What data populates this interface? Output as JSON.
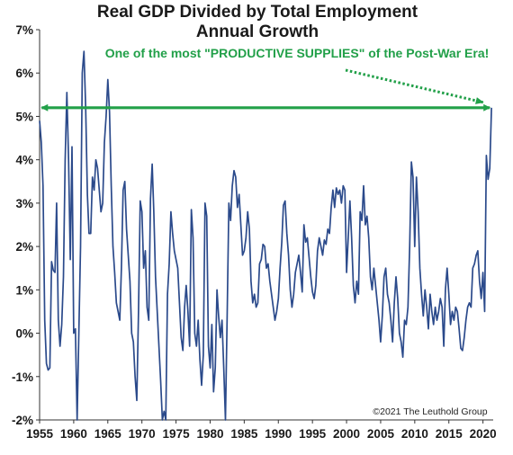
{
  "chart_data": {
    "type": "line",
    "title": "Real GDP Divided by Total Employment",
    "subtitle": "Annual Growth",
    "xlabel": "",
    "ylabel": "",
    "xlim": [
      1955,
      2021.5
    ],
    "ylim": [
      -2,
      7
    ],
    "x_ticks": [
      1955,
      1960,
      1965,
      1970,
      1975,
      1980,
      1985,
      1990,
      1995,
      2000,
      2005,
      2010,
      2015,
      2020
    ],
    "y_ticks": [
      -2,
      -1,
      0,
      1,
      2,
      3,
      4,
      5,
      6,
      7
    ],
    "y_tick_labels": [
      "-2%",
      "-1%",
      "0%",
      "1%",
      "2%",
      "3%",
      "4%",
      "5%",
      "6%",
      "7%"
    ],
    "grid": false,
    "series": [
      {
        "color": "#2b4a8b",
        "points": [
          [
            1955.0,
            4.9
          ],
          [
            1955.25,
            4.4
          ],
          [
            1955.5,
            3.4
          ],
          [
            1955.75,
            0.3
          ],
          [
            1956.0,
            -0.7
          ],
          [
            1956.25,
            -0.85
          ],
          [
            1956.5,
            -0.8
          ],
          [
            1956.75,
            1.65
          ],
          [
            1957.0,
            1.45
          ],
          [
            1957.25,
            1.4
          ],
          [
            1957.5,
            3.0
          ],
          [
            1957.75,
            0.3
          ],
          [
            1958.0,
            -0.3
          ],
          [
            1958.25,
            0.2
          ],
          [
            1958.5,
            1.3
          ],
          [
            1958.75,
            4.0
          ],
          [
            1959.0,
            5.55
          ],
          [
            1959.25,
            4.0
          ],
          [
            1959.5,
            1.7
          ],
          [
            1959.75,
            4.3
          ],
          [
            1960.0,
            0.0
          ],
          [
            1960.25,
            0.1
          ],
          [
            1960.5,
            -2.0
          ],
          [
            1960.75,
            0.0
          ],
          [
            1961.0,
            2.0
          ],
          [
            1961.25,
            6.0
          ],
          [
            1961.5,
            6.5
          ],
          [
            1961.75,
            5.2
          ],
          [
            1962.0,
            3.2
          ],
          [
            1962.25,
            2.3
          ],
          [
            1962.5,
            2.3
          ],
          [
            1962.75,
            3.6
          ],
          [
            1963.0,
            3.3
          ],
          [
            1963.25,
            4.0
          ],
          [
            1963.5,
            3.8
          ],
          [
            1963.75,
            3.3
          ],
          [
            1964.0,
            2.8
          ],
          [
            1964.25,
            3.0
          ],
          [
            1964.5,
            4.4
          ],
          [
            1964.75,
            5.0
          ],
          [
            1965.0,
            5.85
          ],
          [
            1965.25,
            5.1
          ],
          [
            1965.5,
            3.4
          ],
          [
            1965.75,
            2.0
          ],
          [
            1966.0,
            1.4
          ],
          [
            1966.25,
            0.7
          ],
          [
            1966.5,
            0.5
          ],
          [
            1966.75,
            0.3
          ],
          [
            1967.0,
            1.5
          ],
          [
            1967.25,
            3.3
          ],
          [
            1967.5,
            3.5
          ],
          [
            1967.75,
            2.4
          ],
          [
            1968.0,
            1.8
          ],
          [
            1968.25,
            1.2
          ],
          [
            1968.5,
            0.0
          ],
          [
            1968.75,
            -0.2
          ],
          [
            1969.0,
            -1.0
          ],
          [
            1969.25,
            -1.55
          ],
          [
            1969.5,
            0.5
          ],
          [
            1969.75,
            3.05
          ],
          [
            1970.0,
            2.8
          ],
          [
            1970.25,
            1.5
          ],
          [
            1970.5,
            1.9
          ],
          [
            1970.75,
            0.6
          ],
          [
            1971.0,
            0.3
          ],
          [
            1971.25,
            3.1
          ],
          [
            1971.5,
            3.9
          ],
          [
            1971.75,
            2.8
          ],
          [
            1972.0,
            1.3
          ],
          [
            1972.25,
            0.5
          ],
          [
            1972.5,
            -0.3
          ],
          [
            1972.75,
            -1.1
          ],
          [
            1973.0,
            -2.0
          ],
          [
            1973.25,
            -1.8
          ],
          [
            1973.5,
            -2.0
          ],
          [
            1973.75,
            0.9
          ],
          [
            1974.0,
            1.6
          ],
          [
            1974.25,
            2.8
          ],
          [
            1974.5,
            2.3
          ],
          [
            1974.75,
            1.9
          ],
          [
            1975.0,
            1.7
          ],
          [
            1975.25,
            1.5
          ],
          [
            1975.5,
            0.7
          ],
          [
            1975.75,
            -0.1
          ],
          [
            1976.0,
            -0.4
          ],
          [
            1976.25,
            0.6
          ],
          [
            1976.5,
            1.1
          ],
          [
            1976.75,
            0.5
          ],
          [
            1977.0,
            -0.3
          ],
          [
            1977.25,
            2.85
          ],
          [
            1977.5,
            2.2
          ],
          [
            1977.75,
            0.0
          ],
          [
            1978.0,
            -0.3
          ],
          [
            1978.25,
            0.3
          ],
          [
            1978.5,
            -0.6
          ],
          [
            1978.75,
            -1.2
          ],
          [
            1979.0,
            -0.5
          ],
          [
            1979.25,
            3.0
          ],
          [
            1979.5,
            2.7
          ],
          [
            1979.75,
            -0.3
          ],
          [
            1980.0,
            -0.8
          ],
          [
            1980.25,
            0.2
          ],
          [
            1980.5,
            -1.35
          ],
          [
            1980.75,
            -0.8
          ],
          [
            1981.0,
            1.0
          ],
          [
            1981.25,
            0.4
          ],
          [
            1981.5,
            -0.1
          ],
          [
            1981.75,
            0.3
          ],
          [
            1982.0,
            -0.8
          ],
          [
            1982.25,
            -2.0
          ],
          [
            1982.5,
            0.4
          ],
          [
            1982.75,
            3.0
          ],
          [
            1983.0,
            2.6
          ],
          [
            1983.25,
            3.4
          ],
          [
            1983.5,
            3.75
          ],
          [
            1983.75,
            3.6
          ],
          [
            1984.0,
            2.9
          ],
          [
            1984.25,
            3.2
          ],
          [
            1984.5,
            2.5
          ],
          [
            1984.75,
            1.8
          ],
          [
            1985.0,
            1.9
          ],
          [
            1985.25,
            2.2
          ],
          [
            1985.5,
            2.8
          ],
          [
            1985.75,
            2.4
          ],
          [
            1986.0,
            1.2
          ],
          [
            1986.25,
            0.7
          ],
          [
            1986.5,
            0.9
          ],
          [
            1986.75,
            0.6
          ],
          [
            1987.0,
            0.7
          ],
          [
            1987.25,
            1.6
          ],
          [
            1987.5,
            1.7
          ],
          [
            1987.75,
            2.05
          ],
          [
            1988.0,
            2.0
          ],
          [
            1988.25,
            1.5
          ],
          [
            1988.5,
            1.6
          ],
          [
            1988.75,
            1.2
          ],
          [
            1989.0,
            0.9
          ],
          [
            1989.25,
            0.6
          ],
          [
            1989.5,
            0.3
          ],
          [
            1989.75,
            0.5
          ],
          [
            1990.0,
            0.8
          ],
          [
            1990.25,
            1.5
          ],
          [
            1990.5,
            2.1
          ],
          [
            1990.75,
            2.95
          ],
          [
            1991.0,
            3.05
          ],
          [
            1991.25,
            2.3
          ],
          [
            1991.5,
            1.8
          ],
          [
            1991.75,
            1.0
          ],
          [
            1992.0,
            0.6
          ],
          [
            1992.25,
            0.9
          ],
          [
            1992.5,
            1.4
          ],
          [
            1992.75,
            1.6
          ],
          [
            1993.0,
            1.8
          ],
          [
            1993.25,
            1.4
          ],
          [
            1993.5,
            0.95
          ],
          [
            1993.75,
            2.5
          ],
          [
            1994.0,
            2.1
          ],
          [
            1994.25,
            2.2
          ],
          [
            1994.5,
            1.75
          ],
          [
            1994.75,
            1.3
          ],
          [
            1995.0,
            0.95
          ],
          [
            1995.25,
            0.8
          ],
          [
            1995.5,
            1.1
          ],
          [
            1995.75,
            1.9
          ],
          [
            1996.0,
            2.2
          ],
          [
            1996.25,
            2.0
          ],
          [
            1996.5,
            1.8
          ],
          [
            1996.75,
            2.15
          ],
          [
            1997.0,
            2.05
          ],
          [
            1997.25,
            2.4
          ],
          [
            1997.5,
            2.3
          ],
          [
            1997.75,
            2.9
          ],
          [
            1998.0,
            3.3
          ],
          [
            1998.25,
            2.9
          ],
          [
            1998.5,
            3.35
          ],
          [
            1998.75,
            3.2
          ],
          [
            1999.0,
            3.3
          ],
          [
            1999.25,
            3.0
          ],
          [
            1999.5,
            3.4
          ],
          [
            1999.75,
            3.3
          ],
          [
            2000.0,
            1.4
          ],
          [
            2000.25,
            2.2
          ],
          [
            2000.5,
            3.05
          ],
          [
            2000.75,
            2.2
          ],
          [
            2001.0,
            1.1
          ],
          [
            2001.25,
            0.7
          ],
          [
            2001.5,
            1.2
          ],
          [
            2001.75,
            0.9
          ],
          [
            2002.0,
            2.8
          ],
          [
            2002.25,
            2.6
          ],
          [
            2002.5,
            3.4
          ],
          [
            2002.75,
            2.5
          ],
          [
            2003.0,
            2.7
          ],
          [
            2003.25,
            2.2
          ],
          [
            2003.5,
            1.3
          ],
          [
            2003.75,
            1.0
          ],
          [
            2004.0,
            1.5
          ],
          [
            2004.25,
            1.1
          ],
          [
            2004.5,
            0.7
          ],
          [
            2004.75,
            0.3
          ],
          [
            2005.0,
            -0.2
          ],
          [
            2005.25,
            0.4
          ],
          [
            2005.5,
            1.3
          ],
          [
            2005.75,
            1.5
          ],
          [
            2006.0,
            0.9
          ],
          [
            2006.25,
            0.7
          ],
          [
            2006.5,
            0.3
          ],
          [
            2006.75,
            -0.2
          ],
          [
            2007.0,
            0.7
          ],
          [
            2007.25,
            1.3
          ],
          [
            2007.5,
            0.8
          ],
          [
            2007.75,
            0.0
          ],
          [
            2008.0,
            -0.2
          ],
          [
            2008.25,
            -0.55
          ],
          [
            2008.5,
            0.3
          ],
          [
            2008.75,
            0.2
          ],
          [
            2009.0,
            0.6
          ],
          [
            2009.25,
            2.0
          ],
          [
            2009.5,
            3.95
          ],
          [
            2009.75,
            3.6
          ],
          [
            2010.0,
            2.0
          ],
          [
            2010.25,
            3.6
          ],
          [
            2010.5,
            2.8
          ],
          [
            2010.75,
            1.5
          ],
          [
            2011.0,
            0.9
          ],
          [
            2011.25,
            0.4
          ],
          [
            2011.5,
            1.0
          ],
          [
            2011.75,
            0.6
          ],
          [
            2012.0,
            0.1
          ],
          [
            2012.25,
            0.9
          ],
          [
            2012.5,
            0.5
          ],
          [
            2012.75,
            0.2
          ],
          [
            2013.0,
            0.6
          ],
          [
            2013.25,
            0.3
          ],
          [
            2013.5,
            0.5
          ],
          [
            2013.75,
            0.8
          ],
          [
            2014.0,
            0.6
          ],
          [
            2014.25,
            -0.3
          ],
          [
            2014.5,
            1.0
          ],
          [
            2014.75,
            1.5
          ],
          [
            2015.0,
            0.9
          ],
          [
            2015.25,
            0.2
          ],
          [
            2015.5,
            0.5
          ],
          [
            2015.75,
            0.3
          ],
          [
            2016.0,
            0.6
          ],
          [
            2016.25,
            0.5
          ],
          [
            2016.5,
            0.1
          ],
          [
            2016.75,
            -0.35
          ],
          [
            2017.0,
            -0.4
          ],
          [
            2017.25,
            -0.1
          ],
          [
            2017.5,
            0.3
          ],
          [
            2017.75,
            0.6
          ],
          [
            2018.0,
            0.7
          ],
          [
            2018.25,
            0.6
          ],
          [
            2018.5,
            1.5
          ],
          [
            2018.75,
            1.6
          ],
          [
            2019.0,
            1.8
          ],
          [
            2019.25,
            1.9
          ],
          [
            2019.5,
            1.2
          ],
          [
            2019.75,
            0.8
          ],
          [
            2020.0,
            1.4
          ],
          [
            2020.25,
            0.5
          ],
          [
            2020.5,
            4.1
          ],
          [
            2020.75,
            3.55
          ],
          [
            2021.0,
            3.8
          ],
          [
            2021.25,
            5.2
          ]
        ]
      }
    ],
    "reference_line": {
      "y": 5.2,
      "x_start": 1955.3,
      "x_end": 2021.0,
      "color": "#22a049",
      "arrowheads": "both"
    },
    "annotation": {
      "text": "One of the most \"PRODUCTIVE SUPPLIES\" of the Post-War Era!",
      "color": "#22a049",
      "arrow_style": "dotted",
      "arrow_target": [
        2020.8,
        5.2
      ]
    },
    "credit": "©2021 The Leuthold Group"
  }
}
